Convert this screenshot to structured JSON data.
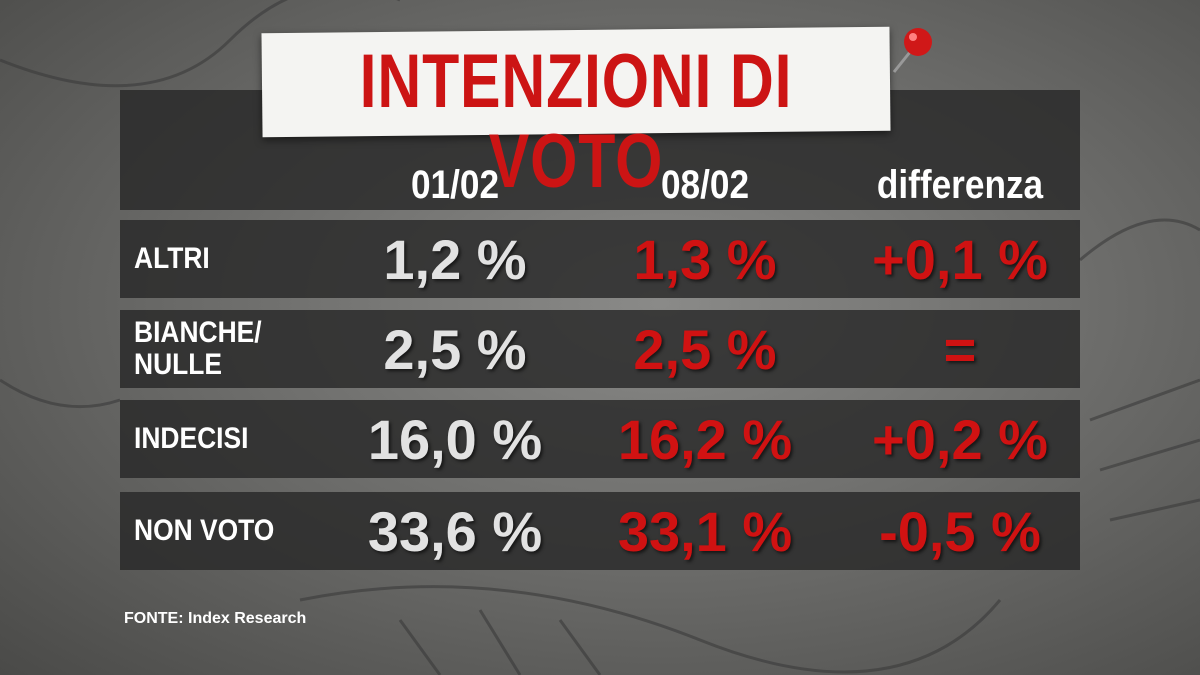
{
  "title": "INTENZIONI DI VOTO",
  "table": {
    "columns": [
      "01/02",
      "08/02",
      "differenza"
    ],
    "rows": [
      [
        "ALTRI",
        "1,2 %",
        "1,3 %",
        "+0,1 %"
      ],
      [
        "BIANCHE/\nNULLE",
        "2,5 %",
        "2,5 %",
        "="
      ],
      [
        "INDECISI",
        "16,0 %",
        "16,2 %",
        "+0,2 %"
      ],
      [
        "NON VOTO",
        "33,6 %",
        "33,1 %",
        "-0,5 %"
      ]
    ]
  },
  "source": "FONTE:  Index Research"
}
